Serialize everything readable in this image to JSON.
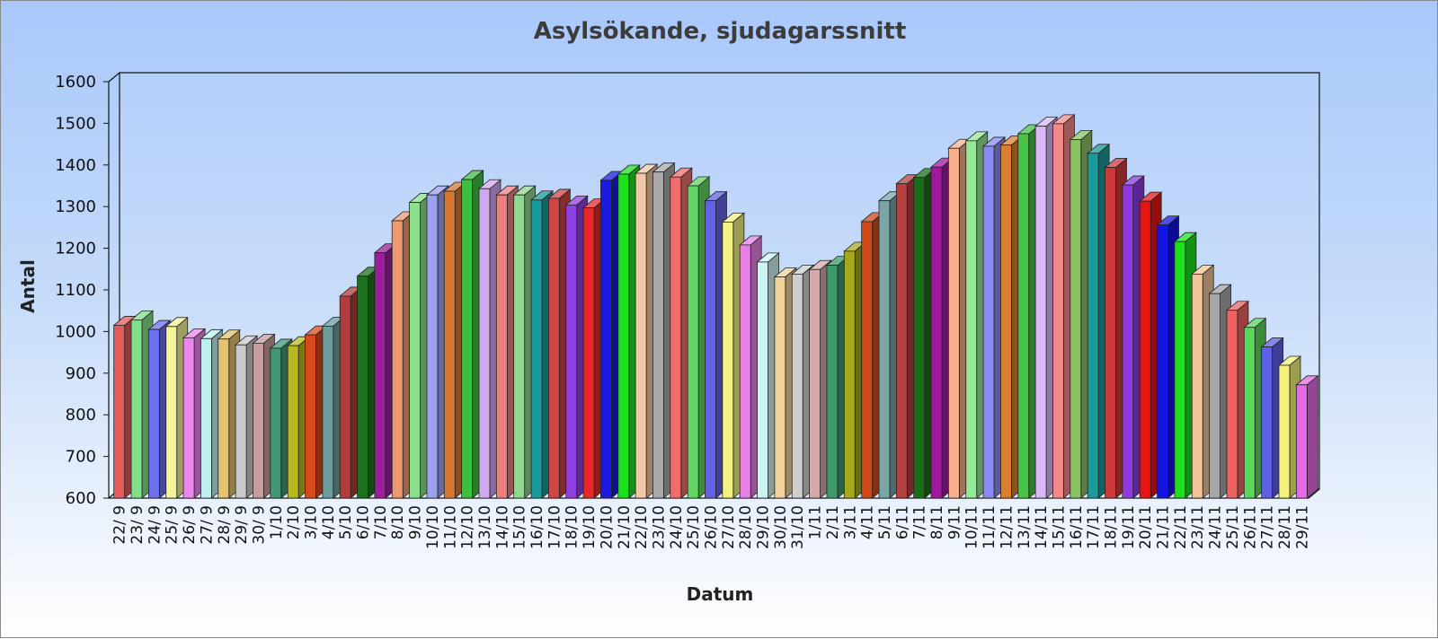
{
  "chart_data": {
    "type": "bar",
    "title": "Asylsökande, sjudagarssnitt",
    "xlabel": "Datum",
    "ylabel": "Antal",
    "ylim": [
      600,
      1600
    ],
    "yticks": [
      600,
      700,
      800,
      900,
      1000,
      1100,
      1200,
      1300,
      1400,
      1500,
      1600
    ],
    "grid": false,
    "legend": "none",
    "categories": [
      "22/ 9",
      "23/ 9",
      "24/ 9",
      "25/ 9",
      "26/ 9",
      "27/ 9",
      "28/ 9",
      "29/ 9",
      "30/ 9",
      "1/10",
      "2/10",
      "3/10",
      "4/10",
      "5/10",
      "6/10",
      "7/10",
      "8/10",
      "9/10",
      "10/10",
      "11/10",
      "12/10",
      "13/10",
      "14/10",
      "15/10",
      "16/10",
      "17/10",
      "18/10",
      "19/10",
      "20/10",
      "21/10",
      "22/10",
      "23/10",
      "24/10",
      "25/10",
      "26/10",
      "27/10",
      "28/10",
      "29/10",
      "30/10",
      "31/10",
      "1/11",
      "2/11",
      "3/11",
      "4/11",
      "5/11",
      "6/11",
      "7/11",
      "8/11",
      "9/11",
      "10/11",
      "11/11",
      "12/11",
      "13/11",
      "14/11",
      "15/11",
      "16/11",
      "17/11",
      "18/11",
      "19/11",
      "20/11",
      "21/11",
      "22/11",
      "23/11",
      "24/11",
      "25/11",
      "26/11",
      "27/11",
      "28/11",
      "29/11"
    ],
    "values": [
      1015,
      1028,
      1005,
      1012,
      985,
      983,
      982,
      968,
      972,
      960,
      966,
      992,
      1013,
      1085,
      1133,
      1189,
      1266,
      1310,
      1328,
      1337,
      1365,
      1343,
      1328,
      1328,
      1316,
      1320,
      1304,
      1297,
      1363,
      1378,
      1380,
      1383,
      1371,
      1350,
      1314,
      1263,
      1208,
      1167,
      1131,
      1138,
      1149,
      1159,
      1193,
      1264,
      1314,
      1355,
      1370,
      1395,
      1440,
      1458,
      1445,
      1448,
      1475,
      1493,
      1499,
      1461,
      1428,
      1394,
      1352,
      1313,
      1256,
      1216,
      1138,
      1091,
      1051,
      1010,
      963,
      919,
      872
    ],
    "colors": [
      "#e55b5b",
      "#82e08a",
      "#6f6ff0",
      "#f4f49a",
      "#ef86ef",
      "#bff0f0",
      "#e5c26e",
      "#c9c9c9",
      "#c69d9d",
      "#3f9a74",
      "#b8b822",
      "#d84a1e",
      "#6a9e9e",
      "#b03c3c",
      "#1d701d",
      "#9b1e9b",
      "#ee9a70",
      "#8be08b",
      "#9ea0f0",
      "#d67832",
      "#3fbf3f",
      "#cfa8f0",
      "#ef7f7f",
      "#91d691",
      "#189a9a",
      "#d04444",
      "#9040e0",
      "#e82828",
      "#1a1ae0",
      "#1de01d",
      "#f2c8a6",
      "#a9a9a9",
      "#ee6e6e",
      "#62d662",
      "#6262e6",
      "#f2f282",
      "#e680e6",
      "#cdf2f2",
      "#f2d29a",
      "#cfcfcf",
      "#d8a8a8",
      "#3e9a6a",
      "#a8a81c",
      "#d04818",
      "#7aa6a6",
      "#b44040",
      "#186e18",
      "#a018a0",
      "#f7b08a",
      "#92ea92",
      "#8a8af2",
      "#d88030",
      "#45c445",
      "#dab8f7",
      "#f28888",
      "#8ac462",
      "#1a9a9a",
      "#cc3a3a",
      "#8e3ae0",
      "#e81414",
      "#1414e0",
      "#1ce01c",
      "#f2c498",
      "#a6a6a6",
      "#ee6262",
      "#5ad65a",
      "#6060e6",
      "#f2f27a",
      "#e66ae6"
    ]
  }
}
